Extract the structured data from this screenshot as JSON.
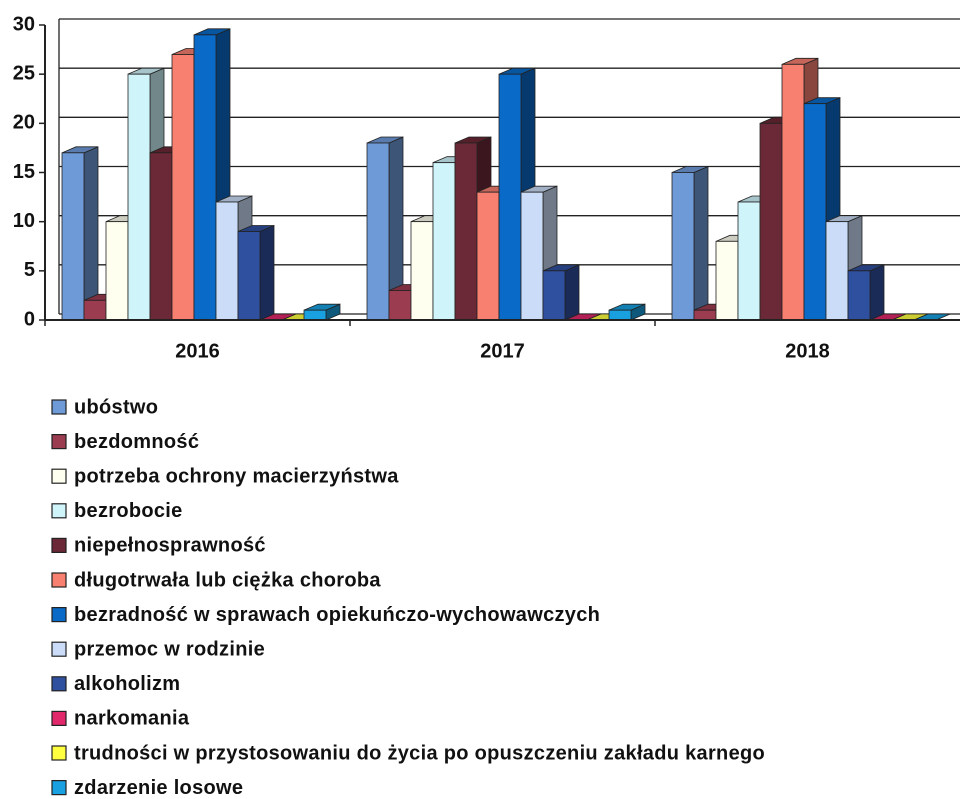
{
  "chart_data": {
    "type": "bar",
    "categories": [
      "2016",
      "2017",
      "2018"
    ],
    "series": [
      {
        "name": "ubóstwo",
        "color": "#6f9ad8",
        "values": [
          17,
          18,
          15
        ]
      },
      {
        "name": "bezdomność",
        "color": "#9c3c50",
        "values": [
          2,
          3,
          1
        ]
      },
      {
        "name": "potrzeba ochrony macierzyństwa",
        "color": "#fffff0",
        "values": [
          10,
          10,
          8
        ]
      },
      {
        "name": "bezrobocie",
        "color": "#cff5fb",
        "values": [
          25,
          16,
          12
        ]
      },
      {
        "name": "niepełnosprawność",
        "color": "#6b2836",
        "values": [
          17,
          18,
          20
        ]
      },
      {
        "name": "długotrwała lub ciężka choroba",
        "color": "#f88070",
        "values": [
          27,
          13,
          26
        ]
      },
      {
        "name": "bezradność w sprawach opiekuńczo-wychowawczych",
        "color": "#0a6ac8",
        "values": [
          29,
          25,
          22
        ]
      },
      {
        "name": "przemoc w rodzinie",
        "color": "#cadcf8",
        "values": [
          12,
          13,
          10
        ]
      },
      {
        "name": "alkoholizm",
        "color": "#2f4f9f",
        "values": [
          9,
          5,
          5
        ]
      },
      {
        "name": "narkomania",
        "color": "#e0286a",
        "values": [
          0,
          0,
          0
        ]
      },
      {
        "name": "trudności w przystosowaniu do życia po opuszczeniu zakładu karnego",
        "color": "#ffff40",
        "values": [
          0,
          0,
          0
        ]
      },
      {
        "name": "zdarzenie losowe",
        "color": "#18a0e0",
        "values": [
          1,
          1,
          0
        ]
      }
    ],
    "ylim": [
      0,
      30
    ],
    "yticks": [
      0,
      5,
      10,
      15,
      20,
      25,
      30
    ],
    "grid": true,
    "legend": "bottom"
  }
}
